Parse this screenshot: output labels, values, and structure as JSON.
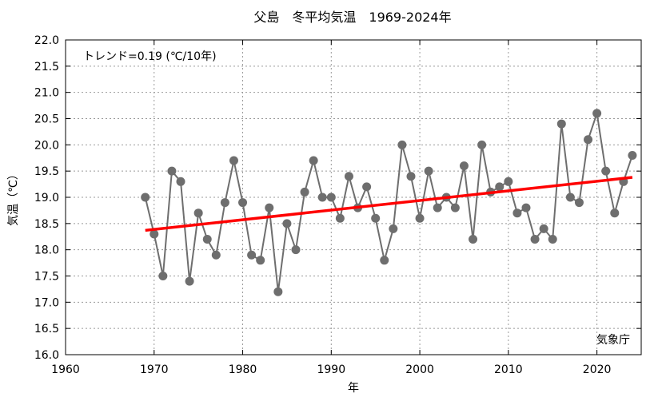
{
  "chart_data": {
    "type": "line",
    "title": "父島　冬平均気温　1969-2024年",
    "xlabel": "年",
    "ylabel": "気温（℃）",
    "xlim": [
      1960,
      2025
    ],
    "ylim": [
      16.0,
      22.0
    ],
    "xticks": [
      "1960",
      "1970",
      "1980",
      "1990",
      "2000",
      "2010",
      "2020"
    ],
    "yticks": [
      "16.0",
      "16.5",
      "17.0",
      "17.5",
      "18.0",
      "18.5",
      "19.0",
      "19.5",
      "20.0",
      "20.5",
      "21.0",
      "21.5",
      "22.0"
    ],
    "grid": true,
    "annotation": "トレンド=0.19 (℃/10年)",
    "source": "気象庁",
    "x": [
      1969,
      1970,
      1971,
      1972,
      1973,
      1974,
      1975,
      1976,
      1977,
      1978,
      1979,
      1980,
      1981,
      1982,
      1983,
      1984,
      1985,
      1986,
      1987,
      1988,
      1989,
      1990,
      1991,
      1992,
      1993,
      1994,
      1995,
      1996,
      1997,
      1998,
      1999,
      2000,
      2001,
      2002,
      2003,
      2004,
      2005,
      2006,
      2007,
      2008,
      2009,
      2010,
      2011,
      2012,
      2013,
      2014,
      2015,
      2016,
      2017,
      2018,
      2019,
      2020,
      2021,
      2022,
      2023,
      2024
    ],
    "series": [
      {
        "name": "冬平均気温",
        "color": "#6e6e6e",
        "values": [
          19.0,
          18.3,
          17.5,
          19.5,
          19.3,
          17.4,
          18.7,
          18.2,
          17.9,
          18.9,
          19.7,
          18.9,
          17.9,
          17.8,
          18.8,
          17.2,
          18.5,
          18.0,
          19.1,
          19.7,
          19.0,
          19.0,
          18.6,
          19.4,
          18.8,
          19.2,
          18.6,
          17.8,
          18.4,
          20.0,
          19.4,
          18.6,
          19.5,
          18.8,
          19.0,
          18.8,
          19.6,
          18.2,
          20.0,
          19.1,
          19.2,
          19.3,
          18.7,
          18.8,
          18.2,
          18.4,
          18.2,
          20.4,
          19.0,
          18.9,
          20.1,
          20.6,
          19.5,
          18.7,
          19.3,
          19.8
        ]
      }
    ],
    "trend": {
      "name": "トレンド",
      "color": "#ff0000",
      "x": [
        1969,
        2024
      ],
      "y": [
        18.37,
        19.38
      ]
    }
  }
}
